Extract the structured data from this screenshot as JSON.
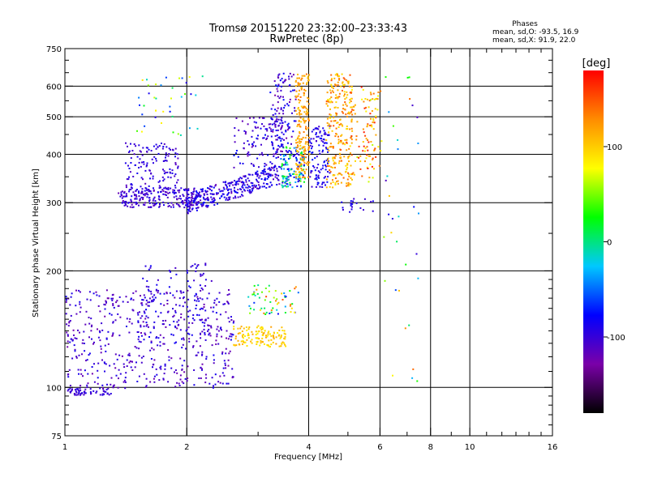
{
  "header": {
    "title": "Tromsø 20151220 23:32:00–23:33:43",
    "subtitle": "RwPretec (8p)"
  },
  "phase_box": {
    "title": "Phases",
    "line_o": "mean, sd,O: -93.5, 16.9",
    "line_x": "mean, sd,X:  91.9, 22.0"
  },
  "chart_data": {
    "type": "scatter",
    "xlabel": "Frequency [MHz]",
    "ylabel": "Stationary phase Virtual Height [km]",
    "x_scale": "log",
    "y_scale": "log",
    "xlim": [
      1,
      16
    ],
    "ylim": [
      75,
      750
    ],
    "x_ticks": [
      {
        "v": 1,
        "label": "1"
      },
      {
        "v": 2,
        "label": "2"
      },
      {
        "v": 4,
        "label": "4"
      },
      {
        "v": 6,
        "label": "6"
      },
      {
        "v": 8,
        "label": "8"
      },
      {
        "v": 10,
        "label": "10"
      },
      {
        "v": 16,
        "label": "16"
      }
    ],
    "y_ticks": [
      {
        "v": 75,
        "label": "75"
      },
      {
        "v": 100,
        "label": "100"
      },
      {
        "v": 200,
        "label": "200"
      },
      {
        "v": 300,
        "label": "300"
      },
      {
        "v": 400,
        "label": "400"
      },
      {
        "v": 500,
        "label": "500"
      },
      {
        "v": 600,
        "label": "600"
      },
      {
        "v": 750,
        "label": "750"
      }
    ],
    "grid_x": [
      2,
      4,
      6,
      8,
      10
    ],
    "grid_y": [
      100,
      200,
      300,
      400,
      500,
      600
    ],
    "colorbar": {
      "label": "[deg]",
      "range": [
        -180,
        180
      ],
      "ticks": [
        {
          "v": 100,
          "label": "100"
        },
        {
          "v": 0,
          "label": "0"
        },
        {
          "v": -100,
          "label": "-100"
        }
      ],
      "colors": [
        "#000000",
        "#7a00a8",
        "#0000ff",
        "#00c8ff",
        "#00ff00",
        "#ffff00",
        "#ff8c00",
        "#ff0000"
      ]
    },
    "series": [
      {
        "x_range": [
          1.0,
          1.3
        ],
        "y_range": [
          96,
          100
        ],
        "phase_range": [
          -110,
          -90
        ],
        "count": 60,
        "shape": "flat"
      },
      {
        "x_range": [
          1.0,
          2.6
        ],
        "y_range": [
          100,
          180
        ],
        "phase_range": [
          -125,
          -85
        ],
        "count": 520,
        "shape": "scatter"
      },
      {
        "x_range": [
          1.5,
          2.3
        ],
        "y_range": [
          130,
          210
        ],
        "phase_range": [
          -110,
          -80
        ],
        "count": 120,
        "shape": "scatter"
      },
      {
        "x_range": [
          2.6,
          3.5
        ],
        "y_range": [
          128,
          145
        ],
        "phase_range": [
          80,
          120
        ],
        "count": 130,
        "shape": "scatter"
      },
      {
        "x_range": [
          2.8,
          3.8
        ],
        "y_range": [
          155,
          185
        ],
        "phase_range": [
          -100,
          150
        ],
        "count": 60,
        "shape": "scatter"
      },
      {
        "x_range": [
          1.35,
          2.2
        ],
        "y_range": [
          293,
          330
        ],
        "phase_range": [
          -120,
          -85
        ],
        "count": 220,
        "shape": "scatter"
      },
      {
        "x_range": [
          1.4,
          1.9
        ],
        "y_range": [
          320,
          430
        ],
        "phase_range": [
          -115,
          -85
        ],
        "count": 140,
        "shape": "scatter"
      },
      {
        "x_range": [
          2.0,
          3.4
        ],
        "y_range": [
          300,
          380
        ],
        "phase_range": [
          -120,
          -70
        ],
        "count": 320,
        "shape": "rising"
      },
      {
        "x_range": [
          2.6,
          3.5
        ],
        "y_range": [
          370,
          500
        ],
        "phase_range": [
          -120,
          -70
        ],
        "count": 120,
        "shape": "scatter"
      },
      {
        "x_range": [
          3.2,
          3.7
        ],
        "y_range": [
          400,
          650
        ],
        "phase_range": [
          -130,
          -70
        ],
        "count": 120,
        "shape": "scatter"
      },
      {
        "x_range": [
          3.4,
          3.9
        ],
        "y_range": [
          330,
          420
        ],
        "phase_range": [
          -105,
          40
        ],
        "count": 140,
        "shape": "scatter"
      },
      {
        "x_range": [
          3.7,
          4.0
        ],
        "y_range": [
          350,
          650
        ],
        "phase_range": [
          95,
          140
        ],
        "count": 200,
        "shape": "scatter"
      },
      {
        "x_range": [
          4.0,
          4.5
        ],
        "y_range": [
          330,
          480
        ],
        "phase_range": [
          -110,
          -70
        ],
        "count": 110,
        "shape": "scatter"
      },
      {
        "x_range": [
          4.4,
          5.1
        ],
        "y_range": [
          330,
          650
        ],
        "phase_range": [
          85,
          150
        ],
        "count": 260,
        "shape": "scatter"
      },
      {
        "x_range": [
          5.0,
          6.0
        ],
        "y_range": [
          340,
          600
        ],
        "phase_range": [
          60,
          170
        ],
        "count": 110,
        "shape": "scatter"
      },
      {
        "x_range": [
          4.8,
          5.8
        ],
        "y_range": [
          285,
          310
        ],
        "phase_range": [
          -105,
          -80
        ],
        "count": 20,
        "shape": "scatter"
      },
      {
        "x_range": [
          1.5,
          2.2
        ],
        "y_range": [
          450,
          640
        ],
        "phase_range": [
          -110,
          90
        ],
        "count": 40,
        "shape": "scatter"
      },
      {
        "x_range": [
          6.0,
          7.5
        ],
        "y_range": [
          100,
          640
        ],
        "phase_range": [
          -115,
          150
        ],
        "count": 35,
        "shape": "scatter"
      }
    ]
  }
}
